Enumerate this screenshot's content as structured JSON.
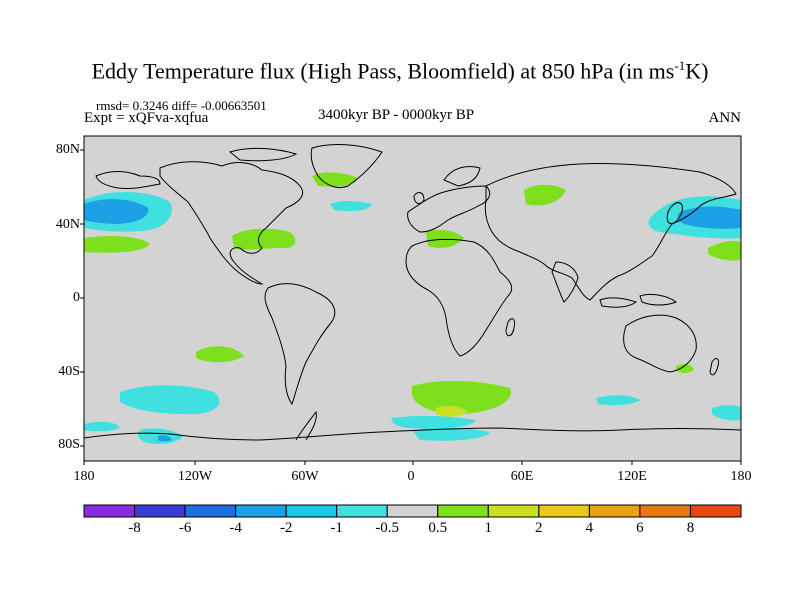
{
  "title": {
    "main": "Eddy Temperature flux (High Pass, Bloomfield) at 850 hPa (in ms",
    "sup": "-1",
    "tail": "K)"
  },
  "stats": "rmsd= 0.3246 diff= -0.00663501",
  "expt": "Expt = xQFva-xqfua",
  "period": "3400kyr BP - 0000kyr BP",
  "season": "ANN",
  "lat_ticks": [
    "80N",
    "40N",
    "0",
    "40S",
    "80S"
  ],
  "lon_ticks": [
    "180",
    "120W",
    "60W",
    "0",
    "60E",
    "120E",
    "180"
  ],
  "colorbar": {
    "colors": [
      "#8a2be2",
      "#3b3bd6",
      "#1f6fe0",
      "#1ca0e6",
      "#18c8e6",
      "#40e0e0",
      "#d3d3d3",
      "#7ee01c",
      "#c8e020",
      "#e8c81c",
      "#e8a014",
      "#e87814",
      "#e84814"
    ],
    "labels": [
      "-8",
      "-6",
      "-4",
      "-2",
      "-1",
      "-0.5",
      "0.5",
      "1",
      "2",
      "4",
      "6",
      "8"
    ]
  },
  "colors": {
    "background": "#d3d3d3",
    "cyan": "#40e0e0",
    "blue": "#1ca0e6",
    "green": "#7ee01c",
    "yellow": "#c8e020"
  }
}
